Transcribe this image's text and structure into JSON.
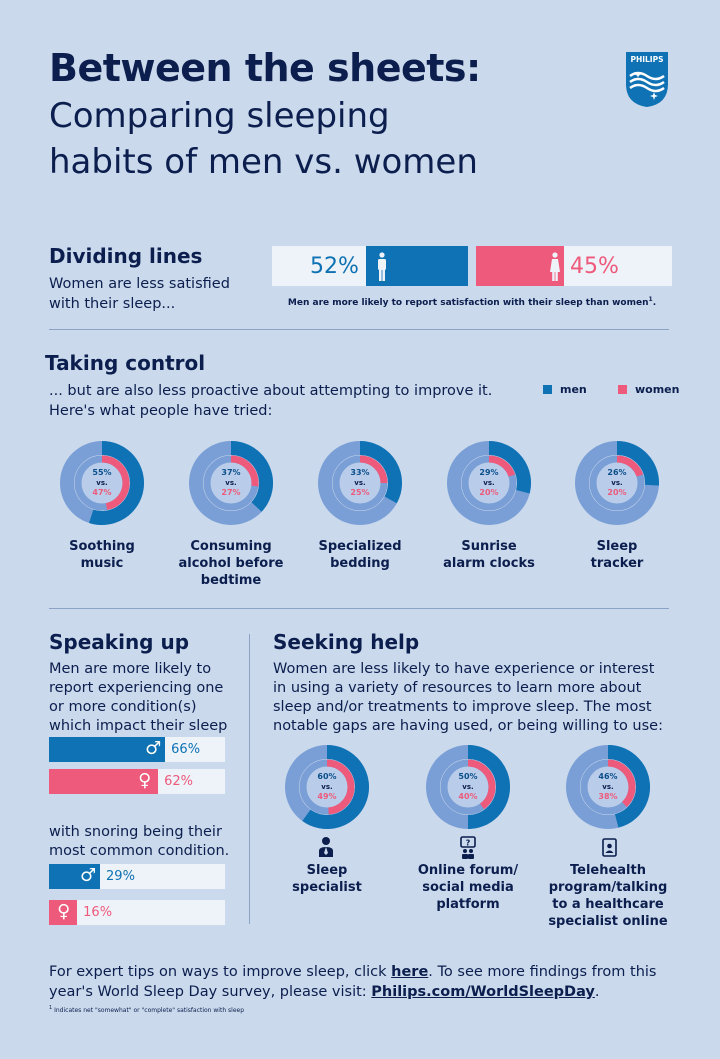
{
  "header": {
    "title_bold": "Between the sheets:",
    "title_line1": "Comparing sleeping",
    "title_line2": "habits of men vs. women",
    "brand": "PHILIPS"
  },
  "dividing": {
    "heading": "Dividing lines",
    "text_l1": "Women are less satisfied",
    "text_l2": "with their sleep...",
    "men_pct": "52%",
    "women_pct": "45%",
    "men_value": 52,
    "women_value": 45,
    "caption": "Men are more likely to report satisfaction with their sleep than women",
    "caption_sup": "1"
  },
  "control": {
    "heading": "Taking control",
    "text_l1": "... but are also less proactive about attempting to improve it.",
    "text_l2": "Here's what people have tried:",
    "legend_men": "men",
    "legend_women": "women"
  },
  "chart_data": [
    {
      "type": "donut",
      "title": "Taking control",
      "vs_label": "vs.",
      "items": [
        {
          "label_l1": "Soothing",
          "label_l2": "music",
          "label_l3": "",
          "men": 55,
          "women": 47,
          "men_label": "55%",
          "women_label": "47%"
        },
        {
          "label_l1": "Consuming",
          "label_l2": "alcohol before",
          "label_l3": "bedtime",
          "men": 37,
          "women": 27,
          "men_label": "37%",
          "women_label": "27%"
        },
        {
          "label_l1": "Specialized",
          "label_l2": "bedding",
          "label_l3": "",
          "men": 33,
          "women": 25,
          "men_label": "33%",
          "women_label": "25%"
        },
        {
          "label_l1": "Sunrise",
          "label_l2": "alarm clocks",
          "label_l3": "",
          "men": 29,
          "women": 20,
          "men_label": "29%",
          "women_label": "20%"
        },
        {
          "label_l1": "Sleep",
          "label_l2": "tracker",
          "label_l3": "",
          "men": 26,
          "women": 20,
          "men_label": "26%",
          "women_label": "20%"
        }
      ]
    },
    {
      "type": "donut",
      "title": "Seeking help",
      "vs_label": "vs.",
      "items": [
        {
          "label_l1": "Sleep",
          "label_l2": "specialist",
          "label_l3": "",
          "label_l4": "",
          "men": 60,
          "women": 49,
          "men_label": "60%",
          "women_label": "49%"
        },
        {
          "label_l1": "Online forum/",
          "label_l2": "social media",
          "label_l3": "platform",
          "label_l4": "",
          "men": 50,
          "women": 40,
          "men_label": "50%",
          "women_label": "40%"
        },
        {
          "label_l1": "Telehealth",
          "label_l2": "program/talking",
          "label_l3": "to a healthcare",
          "label_l4": "specialist online",
          "men": 46,
          "women": 38,
          "men_label": "46%",
          "women_label": "38%"
        }
      ]
    },
    {
      "type": "bar",
      "title": "Speaking up",
      "series": [
        {
          "name": "one or more conditions",
          "men": 66,
          "women": 62,
          "men_label": "66%",
          "women_label": "62%"
        },
        {
          "name": "snoring",
          "men": 29,
          "women": 16,
          "men_label": "29%",
          "women_label": "16%"
        }
      ]
    }
  ],
  "speaking": {
    "heading": "Speaking up",
    "l1": "Men are more likely to",
    "l2": "report experiencing one",
    "l3": "or more condition(s)",
    "l4": "which impact their sleep",
    "snore_l1": "with snoring being their",
    "snore_l2": "most common condition."
  },
  "seeking": {
    "heading": "Seeking help",
    "l1": "Women are less likely to have experience or interest",
    "l2": "in using a variety of resources to learn more about",
    "l3": "sleep and/or treatments to improve sleep. The most",
    "l4": "notable gaps are having used, or being willing to use:"
  },
  "footer": {
    "t1": "For expert tips on ways to improve sleep, click ",
    "link1": "here",
    "t2": ". To see more findings from this",
    "t3": "year's World Sleep Day survey, please visit: ",
    "link2": "Philips.com/WorldSleepDay",
    "t4": ".",
    "footnote_sup": "1",
    "footnote": "Indicates net \"somewhat\" or \"complete\" satisfaction with sleep"
  },
  "colors": {
    "men": "#0e72b5",
    "women": "#ee5a7b",
    "track": "#7a9fd6",
    "inner": "#b9cdea",
    "navy": "#0b1e4d"
  }
}
